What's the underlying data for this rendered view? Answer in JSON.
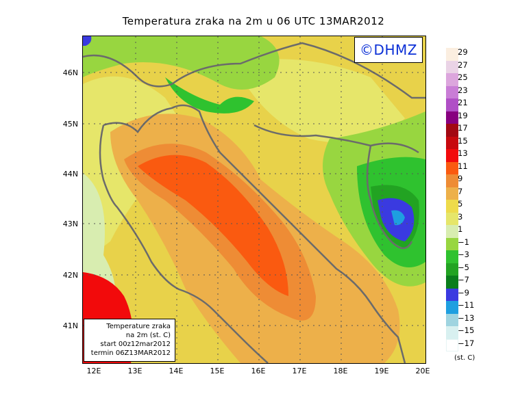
{
  "title": "Temperatura zraka na 2m u 06 UTC 13MAR2012",
  "logo": "©DHMZ",
  "infobox": {
    "line1": "Temperature zraka",
    "line2": "na 2m (st. C)",
    "line3": "start 00z12mar2012",
    "line4": "termin 06Z13MAR2012"
  },
  "lat_labels": [
    "46N",
    "45N",
    "44N",
    "43N",
    "42N",
    "41N"
  ],
  "lon_labels": [
    "12E",
    "13E",
    "14E",
    "15E",
    "16E",
    "17E",
    "18E",
    "19E",
    "20E"
  ],
  "legend": {
    "unit": "(st. C)",
    "levels": [
      "29",
      "27",
      "25",
      "23",
      "21",
      "19",
      "17",
      "15",
      "13",
      "11",
      "9",
      "7",
      "5",
      "3",
      "1",
      "−1",
      "−3",
      "−5",
      "−7",
      "−9",
      "−11",
      "−13",
      "−15",
      "−17"
    ],
    "colors": [
      "#fbeee0",
      "#ead3e6",
      "#dca6dd",
      "#c97dd6",
      "#b04fc6",
      "#87007f",
      "#a20813",
      "#c7090e",
      "#f20a0b",
      "#fa5a10",
      "#ee8c35",
      "#edb04a",
      "#eedb4b",
      "#e6e66a",
      "#d8edb0",
      "#98d640",
      "#2fc22f",
      "#22a322",
      "#0a7d1c",
      "#3a3ae0",
      "#1e9fe0",
      "#9fd4e0",
      "#d8f0f0",
      "#ffffff"
    ]
  }
}
